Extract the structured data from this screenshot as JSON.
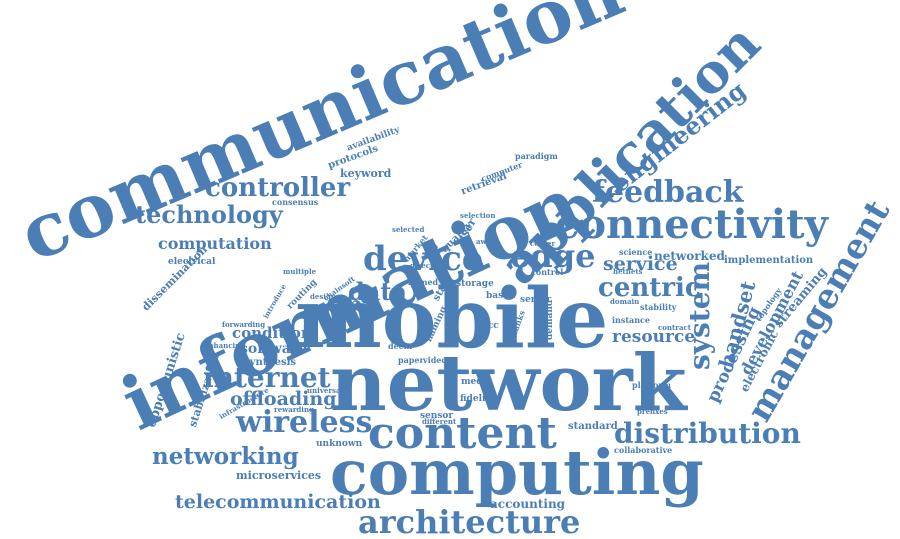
{
  "color": "#4a7eb5",
  "words": [
    "communication",
    "information",
    "application",
    "mobile",
    "network",
    "computing",
    "content",
    "connectivity",
    "management",
    "distribution",
    "architecture",
    "controller",
    "technology",
    "feedback",
    "engineering",
    "device",
    "edge",
    "internet",
    "wireless",
    "networking",
    "centric",
    "system",
    "data",
    "computation",
    "telecommunication",
    "service",
    "offloading",
    "handset",
    "processing",
    "resource",
    "development",
    "condition",
    "software",
    "streaming",
    "peer",
    "electronic",
    "networked",
    "implementation",
    "opportunistic",
    "stabilization",
    "dissemination",
    "microservices",
    "accounting",
    "standard",
    "collaborative",
    "unknown",
    "sensor",
    "fidelity",
    "media",
    "storage",
    "based",
    "server",
    "named",
    "paper",
    "video",
    "keyword",
    "protocols",
    "availability",
    "retrieval",
    "computer",
    "paradigm",
    "consensus",
    "electrical",
    "routing",
    "multiple",
    "chainsoft",
    "synthesis",
    "forwarding",
    "enhancing",
    "rewarding",
    "universal",
    "introduce",
    "instance",
    "platform",
    "stability",
    "topology",
    "domain",
    "prefixes",
    "science",
    "hetnets",
    "selection",
    "quality",
    "user",
    "aware",
    "demand",
    "control",
    "center",
    "market",
    "state",
    "direct",
    "design",
    "acc",
    "deem",
    "naming",
    "thanks",
    "selected",
    "contract",
    "different",
    "infrastructure"
  ]
}
